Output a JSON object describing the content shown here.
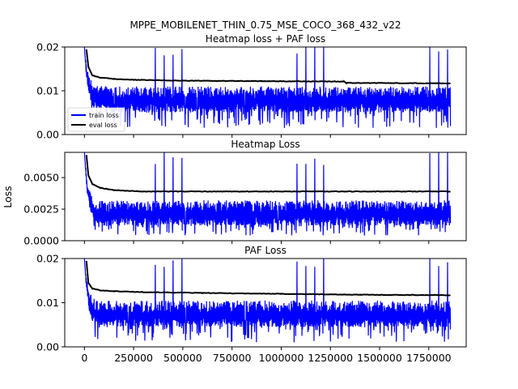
{
  "figure": {
    "title_line1": "MPPE_MOBILENET_THIN_0.75_MSE_COCO_368_432_v22",
    "ylabel": "Loss"
  },
  "colors": {
    "train": "#0000ff",
    "eval": "#000000",
    "background": "#ffffff"
  },
  "chart_data": [
    {
      "type": "line",
      "title": "Heatmap loss + PAF loss",
      "xlim": [
        -100000,
        1940000
      ],
      "ylim": [
        0,
        0.02
      ],
      "yticks": [
        "0.00",
        "0.01",
        "0.02"
      ],
      "xticks": [],
      "legend": {
        "placement": "lower-left",
        "entries": [
          "train loss",
          "eval loss"
        ]
      },
      "series": [
        {
          "name": "train loss",
          "color": "#0000ff",
          "band": [
            0.005,
            0.011
          ],
          "noise_low": 0.0015,
          "noise_high": 0.02,
          "spike_period": 45000,
          "start": 0.02
        },
        {
          "name": "eval loss",
          "color": "#000000",
          "points": [
            [
              10000,
              0.0195
            ],
            [
              20000,
              0.0155
            ],
            [
              40000,
              0.0135
            ],
            [
              80000,
              0.013
            ],
            [
              150000,
              0.0127
            ],
            [
              250000,
              0.0125
            ],
            [
              500000,
              0.0123
            ],
            [
              900000,
              0.0122
            ],
            [
              1320000,
              0.0121
            ],
            [
              1330000,
              0.0118
            ],
            [
              1860000,
              0.0117
            ]
          ]
        }
      ]
    },
    {
      "type": "line",
      "title": "Heatmap Loss",
      "xlim": [
        -100000,
        1940000
      ],
      "ylim": [
        0,
        0.007
      ],
      "yticks": [
        "0.0000",
        "0.0025",
        "0.0050"
      ],
      "xticks": [],
      "series": [
        {
          "name": "train loss",
          "color": "#0000ff",
          "band": [
            0.0012,
            0.0032
          ],
          "noise_low": 0.0004,
          "noise_high": 0.007,
          "spike_period": 45000,
          "start": 0.007
        },
        {
          "name": "eval loss",
          "color": "#000000",
          "points": [
            [
              10000,
              0.0068
            ],
            [
              20000,
              0.0052
            ],
            [
              40000,
              0.0045
            ],
            [
              80000,
              0.0042
            ],
            [
              150000,
              0.004
            ],
            [
              300000,
              0.0039
            ],
            [
              700000,
              0.0039
            ],
            [
              1200000,
              0.0039
            ],
            [
              1860000,
              0.0039
            ]
          ]
        }
      ]
    },
    {
      "type": "line",
      "title": "PAF Loss",
      "xlim": [
        -100000,
        1940000
      ],
      "ylim": [
        0,
        0.02
      ],
      "yticks": [
        "0.00",
        "0.01",
        "0.02"
      ],
      "xticks": [
        "0",
        "250000",
        "500000",
        "750000",
        "1000000",
        "1250000",
        "1500000",
        "1750000"
      ],
      "xtick_values": [
        0,
        250000,
        500000,
        750000,
        1000000,
        1250000,
        1500000,
        1750000
      ],
      "series": [
        {
          "name": "train loss",
          "color": "#0000ff",
          "band": [
            0.0045,
            0.0105
          ],
          "noise_low": 0.001,
          "noise_high": 0.02,
          "spike_period": 45000,
          "start": 0.02
        },
        {
          "name": "eval loss",
          "color": "#000000",
          "points": [
            [
              10000,
              0.0195
            ],
            [
              20000,
              0.0145
            ],
            [
              40000,
              0.0132
            ],
            [
              80000,
              0.0128
            ],
            [
              150000,
              0.0126
            ],
            [
              300000,
              0.0124
            ],
            [
              600000,
              0.0122
            ],
            [
              1000000,
              0.012
            ],
            [
              1400000,
              0.0118
            ],
            [
              1860000,
              0.0117
            ]
          ]
        }
      ]
    }
  ]
}
